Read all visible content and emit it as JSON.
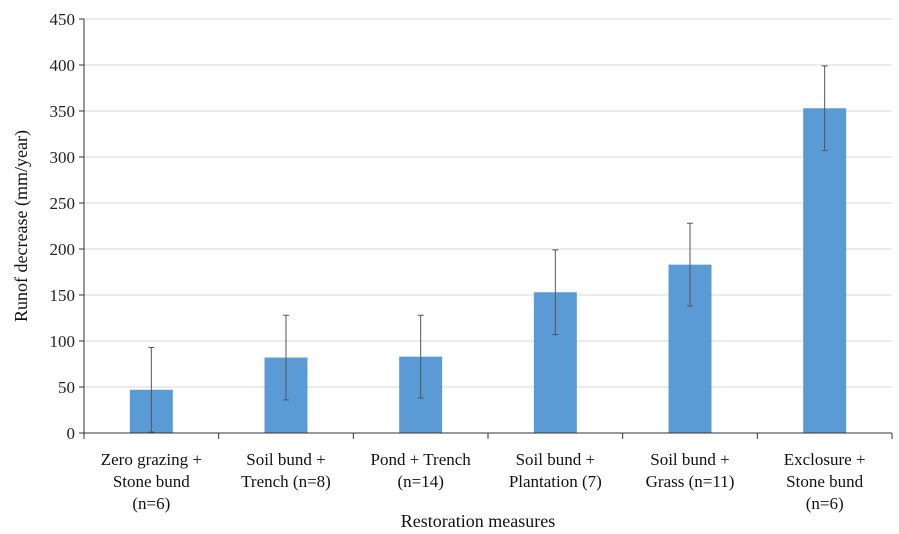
{
  "chart_data": {
    "type": "bar",
    "title": "",
    "xlabel": "Restoration measures",
    "ylabel": "Runof decrease (mm/year)",
    "ylim": [
      0,
      450
    ],
    "ytick_step": 50,
    "yticks": [
      "0",
      "50",
      "100",
      "150",
      "200",
      "250",
      "300",
      "350",
      "400",
      "450"
    ],
    "grid": "horizontal",
    "bar_color": "#5B9BD5",
    "categories": [
      [
        "Zero grazing +",
        "Stone bund",
        "(n=6)"
      ],
      [
        "Soil bund +",
        "Trench (n=8)"
      ],
      [
        "Pond + Trench",
        "(n=14)"
      ],
      [
        "Soil bund +",
        "Plantation (7)"
      ],
      [
        "Soil bund +",
        "Grass (n=11)"
      ],
      [
        "Exclosure +",
        "Stone bund",
        "(n=6)"
      ]
    ],
    "values": [
      47,
      82,
      83,
      153,
      183,
      353
    ],
    "error": [
      46,
      46,
      45,
      46,
      45,
      46
    ]
  }
}
